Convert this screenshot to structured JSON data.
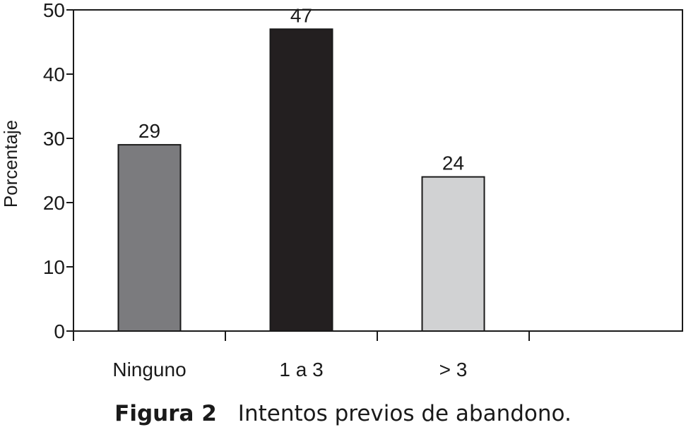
{
  "chart_data": {
    "type": "bar",
    "categories": [
      "Ninguno",
      "1 a 3",
      "> 3"
    ],
    "values": [
      29,
      47,
      24
    ],
    "data_labels": [
      "29",
      "47",
      "24"
    ],
    "ylabel": "Porcentaje",
    "xlabel": "",
    "ylim": [
      0,
      50
    ],
    "yticks": [
      0,
      10,
      20,
      30,
      40,
      50
    ],
    "bar_colors": [
      "#7b7b7e",
      "#231f20",
      "#d1d2d3"
    ],
    "grid": false,
    "legend": "none"
  },
  "caption": {
    "figure_number": "Figura 2",
    "text": "Intentos previos de abandono."
  }
}
